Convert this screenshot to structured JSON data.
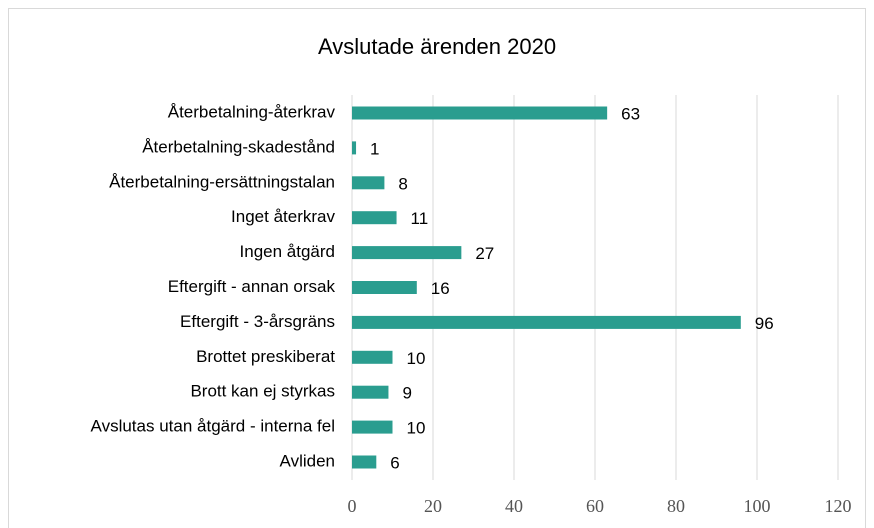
{
  "chart_data": {
    "type": "barh",
    "title": "Avslutade ärenden 2020",
    "categories": [
      "Återbetalning-återkrav",
      "Återbetalning-skadestånd",
      "Återbetalning-ersättningstalan",
      "Inget återkrav",
      "Ingen åtgärd",
      "Eftergift - annan orsak",
      "Eftergift - 3-årsgräns",
      "Brottet preskiberat",
      "Brott kan ej styrkas",
      "Avslutas utan åtgärd - interna fel",
      "Avliden"
    ],
    "values": [
      63,
      1,
      8,
      11,
      27,
      16,
      96,
      10,
      9,
      10,
      6
    ],
    "color": "#2a9d8f",
    "xlim": [
      0,
      120
    ],
    "xticks": [
      0,
      20,
      40,
      60,
      80,
      100,
      120
    ],
    "grid": true
  }
}
